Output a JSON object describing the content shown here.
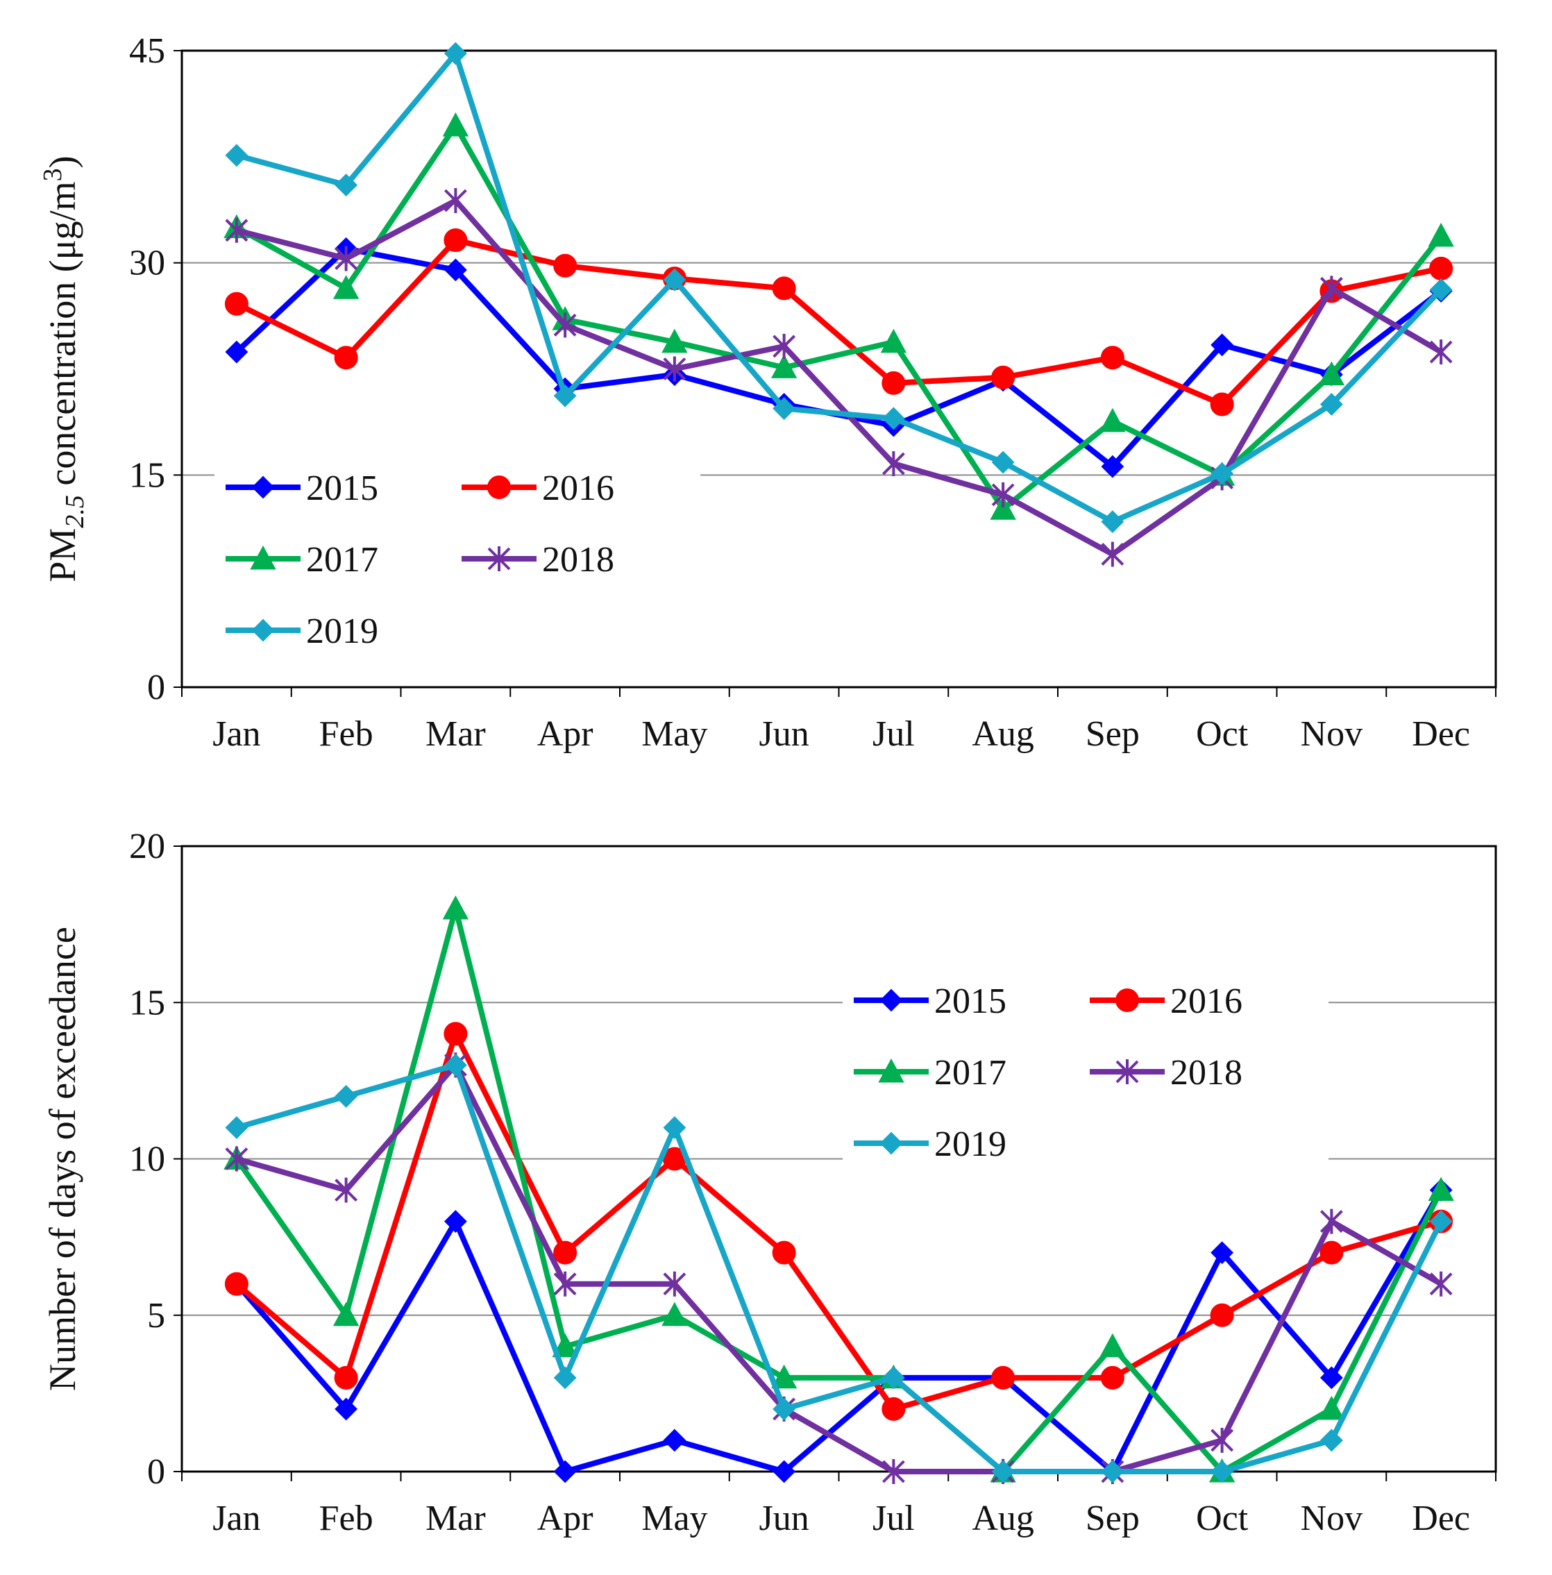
{
  "chart_data": [
    {
      "type": "line",
      "title": "",
      "xlabel": "",
      "ylabel": "PM2.5 concentration (μg/m3)",
      "ylabel_parts": {
        "base": "PM",
        "subscript": "2.5",
        "middle": " concentration (μg/m",
        "superscript": "3",
        "end": ")"
      },
      "ylim": [
        0,
        45
      ],
      "yticks": [
        "0",
        "15",
        "30",
        "45"
      ],
      "grid": "horizontal",
      "legend_position": "lower-left",
      "categories": [
        "Jan",
        "Feb",
        "Mar",
        "Apr",
        "May",
        "Jun",
        "Jul",
        "Aug",
        "Sep",
        "Oct",
        "Nov",
        "Dec"
      ],
      "series": [
        {
          "name": "2015",
          "color": "#0000ff",
          "marker": "diamond",
          "values": [
            23.7,
            31.0,
            29.5,
            21.1,
            22.1,
            20.0,
            18.5,
            21.7,
            15.6,
            24.2,
            22.1,
            28.0
          ]
        },
        {
          "name": "2016",
          "color": "#ff0000",
          "marker": "circle",
          "values": [
            27.1,
            23.3,
            31.6,
            29.8,
            28.9,
            28.2,
            21.5,
            21.9,
            23.3,
            20.0,
            28.0,
            29.6
          ]
        },
        {
          "name": "2017",
          "color": "#00b050",
          "marker": "triangle",
          "values": [
            32.5,
            28.2,
            39.7,
            26.0,
            24.4,
            22.6,
            24.4,
            12.6,
            18.8,
            15.0,
            22.1,
            31.9
          ]
        },
        {
          "name": "2018",
          "color": "#7030a0",
          "marker": "asterisk",
          "values": [
            32.3,
            30.3,
            34.4,
            25.6,
            22.5,
            24.1,
            15.8,
            13.6,
            9.4,
            14.8,
            28.2,
            23.7
          ]
        },
        {
          "name": "2019",
          "color": "#17a6c8",
          "marker": "diamond",
          "values": [
            37.6,
            35.5,
            44.8,
            20.6,
            28.8,
            19.7,
            19.0,
            15.9,
            11.7,
            15.1,
            20.0,
            28.1
          ]
        }
      ]
    },
    {
      "type": "line",
      "title": "",
      "xlabel": "",
      "ylabel": "Number of days of exceedance",
      "ylim": [
        0,
        20
      ],
      "yticks": [
        "0",
        "5",
        "10",
        "15",
        "20"
      ],
      "grid": "horizontal",
      "legend_position": "upper-right",
      "categories": [
        "Jan",
        "Feb",
        "Mar",
        "Apr",
        "May",
        "Jun",
        "Jul",
        "Aug",
        "Sep",
        "Oct",
        "Nov",
        "Dec"
      ],
      "series": [
        {
          "name": "2015",
          "color": "#0000ff",
          "marker": "diamond",
          "values": [
            6,
            2,
            8,
            0,
            1,
            0,
            3,
            3,
            0,
            7,
            3,
            9
          ]
        },
        {
          "name": "2016",
          "color": "#ff0000",
          "marker": "circle",
          "values": [
            6,
            3,
            14,
            7,
            10,
            7,
            2,
            3,
            3,
            5,
            7,
            8
          ]
        },
        {
          "name": "2017",
          "color": "#00b050",
          "marker": "triangle",
          "values": [
            10,
            5,
            18,
            4,
            5,
            3,
            3,
            0,
            4,
            0,
            2,
            9
          ]
        },
        {
          "name": "2018",
          "color": "#7030a0",
          "marker": "asterisk",
          "values": [
            10,
            9,
            13,
            6,
            6,
            2,
            0,
            0,
            0,
            1,
            8,
            6
          ]
        },
        {
          "name": "2019",
          "color": "#17a6c8",
          "marker": "diamond",
          "values": [
            11,
            12,
            13,
            3,
            11,
            2,
            3,
            0,
            0,
            0,
            1,
            8
          ]
        }
      ]
    }
  ]
}
